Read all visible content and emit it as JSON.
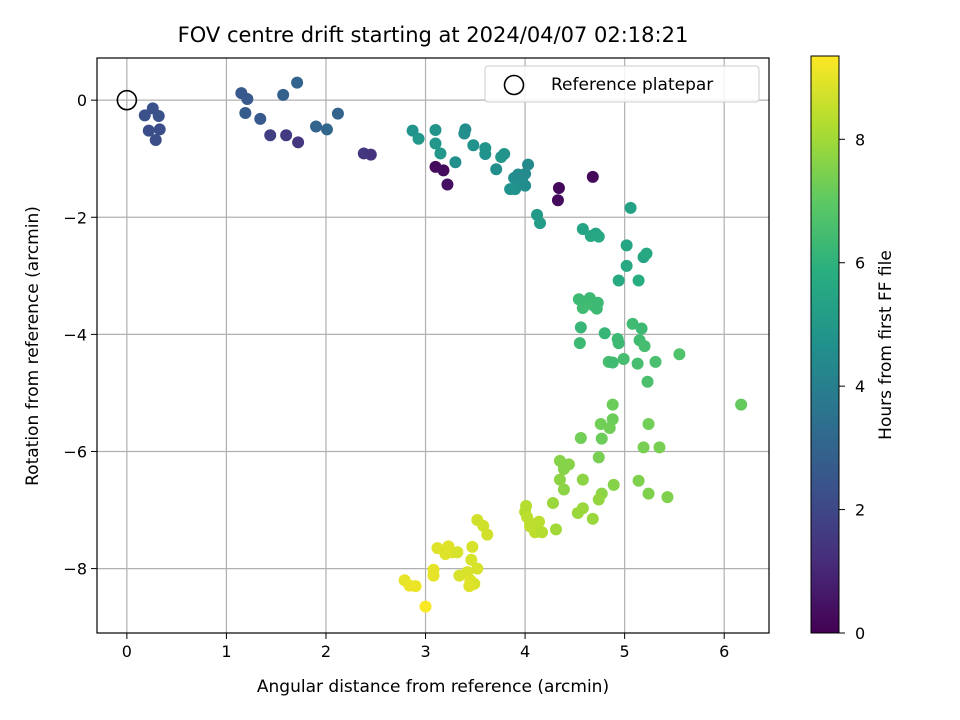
{
  "chart_data": {
    "type": "scatter",
    "title": "FOV centre drift starting at 2024/04/07 02:18:21",
    "xlabel": "Angular distance from reference (arcmin)",
    "ylabel": "Rotation from reference (arcmin)",
    "colorbar_label": "Hours from first FF file",
    "colormap": "viridis",
    "xlim": [
      -0.3,
      6.45
    ],
    "ylim": [
      -9.1,
      0.72
    ],
    "clim": [
      0,
      9.35
    ],
    "x_ticks": [
      0,
      1,
      2,
      3,
      4,
      5,
      6
    ],
    "y_ticks": [
      0,
      -2,
      -4,
      -6,
      -8
    ],
    "colorbar_ticks": [
      0,
      2,
      4,
      6,
      8
    ],
    "grid": true,
    "legend": {
      "placement": "top-right",
      "entries": [
        "Reference platepar"
      ]
    },
    "reference_point": {
      "x": 0,
      "y": 0,
      "marker": "open-circle"
    },
    "points": [
      {
        "x": 0.18,
        "y": -0.26,
        "c": 2.3
      },
      {
        "x": 0.26,
        "y": -0.14,
        "c": 2.3
      },
      {
        "x": 0.32,
        "y": -0.27,
        "c": 2.3
      },
      {
        "x": 0.22,
        "y": -0.52,
        "c": 2.2
      },
      {
        "x": 0.33,
        "y": -0.5,
        "c": 2.2
      },
      {
        "x": 0.29,
        "y": -0.68,
        "c": 2.2
      },
      {
        "x": 1.15,
        "y": 0.12,
        "c": 2.6
      },
      {
        "x": 1.21,
        "y": 0.02,
        "c": 2.6
      },
      {
        "x": 1.19,
        "y": -0.22,
        "c": 2.7
      },
      {
        "x": 1.34,
        "y": -0.32,
        "c": 2.6
      },
      {
        "x": 1.44,
        "y": -0.6,
        "c": 1.7
      },
      {
        "x": 1.57,
        "y": 0.09,
        "c": 2.9
      },
      {
        "x": 1.71,
        "y": 0.3,
        "c": 3.0
      },
      {
        "x": 1.6,
        "y": -0.6,
        "c": 1.6
      },
      {
        "x": 1.72,
        "y": -0.72,
        "c": 1.5
      },
      {
        "x": 1.9,
        "y": -0.45,
        "c": 3.0
      },
      {
        "x": 2.01,
        "y": -0.5,
        "c": 3.1
      },
      {
        "x": 2.12,
        "y": -0.23,
        "c": 3.0
      },
      {
        "x": 2.38,
        "y": -0.91,
        "c": 1.5
      },
      {
        "x": 2.45,
        "y": -0.93,
        "c": 1.4
      },
      {
        "x": 2.87,
        "y": -0.52,
        "c": 4.8
      },
      {
        "x": 2.93,
        "y": -0.66,
        "c": 4.9
      },
      {
        "x": 3.1,
        "y": -0.51,
        "c": 4.8
      },
      {
        "x": 3.1,
        "y": -0.74,
        "c": 4.9
      },
      {
        "x": 3.15,
        "y": -0.91,
        "c": 4.9
      },
      {
        "x": 3.1,
        "y": -1.14,
        "c": 0.3
      },
      {
        "x": 3.18,
        "y": -1.2,
        "c": 0.3
      },
      {
        "x": 3.22,
        "y": -1.44,
        "c": 0.4
      },
      {
        "x": 3.3,
        "y": -1.06,
        "c": 4.6
      },
      {
        "x": 3.4,
        "y": -0.5,
        "c": 4.5
      },
      {
        "x": 3.39,
        "y": -0.57,
        "c": 4.6
      },
      {
        "x": 3.48,
        "y": -0.77,
        "c": 4.7
      },
      {
        "x": 3.6,
        "y": -0.82,
        "c": 4.8
      },
      {
        "x": 3.6,
        "y": -0.92,
        "c": 4.7
      },
      {
        "x": 3.71,
        "y": -1.18,
        "c": 4.6
      },
      {
        "x": 3.76,
        "y": -0.97,
        "c": 4.9
      },
      {
        "x": 3.79,
        "y": -0.92,
        "c": 4.8
      },
      {
        "x": 3.85,
        "y": -1.52,
        "c": 4.7
      },
      {
        "x": 3.89,
        "y": -1.33,
        "c": 4.6
      },
      {
        "x": 3.9,
        "y": -1.52,
        "c": 4.7
      },
      {
        "x": 3.93,
        "y": -1.27,
        "c": 4.5
      },
      {
        "x": 3.97,
        "y": -1.37,
        "c": 4.6
      },
      {
        "x": 4.0,
        "y": -1.46,
        "c": 4.5
      },
      {
        "x": 4.0,
        "y": -1.26,
        "c": 4.4
      },
      {
        "x": 4.03,
        "y": -1.1,
        "c": 4.4
      },
      {
        "x": 4.12,
        "y": -1.96,
        "c": 5.0
      },
      {
        "x": 4.15,
        "y": -2.1,
        "c": 5.1
      },
      {
        "x": 4.34,
        "y": -1.5,
        "c": 0.2
      },
      {
        "x": 4.33,
        "y": -1.71,
        "c": 0.3
      },
      {
        "x": 4.68,
        "y": -1.31,
        "c": 0.2
      },
      {
        "x": 4.58,
        "y": -2.2,
        "c": 5.4
      },
      {
        "x": 4.66,
        "y": -2.32,
        "c": 5.6
      },
      {
        "x": 4.71,
        "y": -2.28,
        "c": 5.5
      },
      {
        "x": 4.74,
        "y": -2.33,
        "c": 5.6
      },
      {
        "x": 5.06,
        "y": -1.84,
        "c": 5.3
      },
      {
        "x": 5.02,
        "y": -2.48,
        "c": 5.5
      },
      {
        "x": 5.02,
        "y": -2.83,
        "c": 5.6
      },
      {
        "x": 4.94,
        "y": -3.08,
        "c": 5.7
      },
      {
        "x": 5.14,
        "y": -3.08,
        "c": 5.8
      },
      {
        "x": 5.19,
        "y": -2.68,
        "c": 5.5
      },
      {
        "x": 5.22,
        "y": -2.62,
        "c": 5.6
      },
      {
        "x": 4.54,
        "y": -3.4,
        "c": 6.3
      },
      {
        "x": 4.59,
        "y": -3.46,
        "c": 6.3
      },
      {
        "x": 4.65,
        "y": -3.38,
        "c": 6.3
      },
      {
        "x": 4.58,
        "y": -3.55,
        "c": 6.4
      },
      {
        "x": 4.68,
        "y": -3.5,
        "c": 6.4
      },
      {
        "x": 4.73,
        "y": -3.46,
        "c": 6.3
      },
      {
        "x": 4.72,
        "y": -3.56,
        "c": 6.3
      },
      {
        "x": 4.56,
        "y": -3.88,
        "c": 6.2
      },
      {
        "x": 4.55,
        "y": -4.15,
        "c": 6.3
      },
      {
        "x": 4.8,
        "y": -3.98,
        "c": 6.2
      },
      {
        "x": 4.93,
        "y": -4.08,
        "c": 6.3
      },
      {
        "x": 4.94,
        "y": -4.15,
        "c": 6.3
      },
      {
        "x": 5.08,
        "y": -3.82,
        "c": 6.4
      },
      {
        "x": 5.17,
        "y": -3.9,
        "c": 6.3
      },
      {
        "x": 5.15,
        "y": -4.1,
        "c": 6.4
      },
      {
        "x": 5.2,
        "y": -4.2,
        "c": 6.5
      },
      {
        "x": 4.84,
        "y": -4.47,
        "c": 6.5
      },
      {
        "x": 4.88,
        "y": -4.48,
        "c": 6.4
      },
      {
        "x": 4.99,
        "y": -4.42,
        "c": 6.5
      },
      {
        "x": 5.13,
        "y": -4.5,
        "c": 6.5
      },
      {
        "x": 5.31,
        "y": -4.47,
        "c": 6.6
      },
      {
        "x": 5.23,
        "y": -4.81,
        "c": 6.6
      },
      {
        "x": 5.55,
        "y": -4.34,
        "c": 6.7
      },
      {
        "x": 6.17,
        "y": -5.2,
        "c": 7.1
      },
      {
        "x": 4.88,
        "y": -5.2,
        "c": 7.2
      },
      {
        "x": 4.88,
        "y": -5.45,
        "c": 7.2
      },
      {
        "x": 4.76,
        "y": -5.53,
        "c": 7.3
      },
      {
        "x": 4.85,
        "y": -5.6,
        "c": 7.3
      },
      {
        "x": 4.77,
        "y": -5.78,
        "c": 7.2
      },
      {
        "x": 4.56,
        "y": -5.77,
        "c": 7.3
      },
      {
        "x": 5.24,
        "y": -5.53,
        "c": 7.3
      },
      {
        "x": 5.19,
        "y": -5.93,
        "c": 7.4
      },
      {
        "x": 5.35,
        "y": -5.93,
        "c": 7.4
      },
      {
        "x": 4.74,
        "y": -6.1,
        "c": 7.4
      },
      {
        "x": 4.35,
        "y": -6.16,
        "c": 7.6
      },
      {
        "x": 4.44,
        "y": -6.22,
        "c": 7.6
      },
      {
        "x": 4.39,
        "y": -6.3,
        "c": 7.6
      },
      {
        "x": 4.35,
        "y": -6.48,
        "c": 7.7
      },
      {
        "x": 4.58,
        "y": -6.48,
        "c": 7.7
      },
      {
        "x": 4.39,
        "y": -6.65,
        "c": 7.7
      },
      {
        "x": 4.89,
        "y": -6.57,
        "c": 7.6
      },
      {
        "x": 5.14,
        "y": -6.5,
        "c": 7.5
      },
      {
        "x": 5.24,
        "y": -6.72,
        "c": 7.5
      },
      {
        "x": 5.43,
        "y": -6.78,
        "c": 7.5
      },
      {
        "x": 4.77,
        "y": -6.72,
        "c": 7.7
      },
      {
        "x": 4.74,
        "y": -6.82,
        "c": 7.8
      },
      {
        "x": 4.28,
        "y": -6.88,
        "c": 7.9
      },
      {
        "x": 4.58,
        "y": -6.97,
        "c": 7.9
      },
      {
        "x": 4.53,
        "y": -7.05,
        "c": 7.9
      },
      {
        "x": 4.68,
        "y": -7.15,
        "c": 7.9
      },
      {
        "x": 4.31,
        "y": -7.33,
        "c": 8.0
      },
      {
        "x": 4.01,
        "y": -6.93,
        "c": 8.3
      },
      {
        "x": 4.0,
        "y": -7.03,
        "c": 8.3
      },
      {
        "x": 4.02,
        "y": -7.12,
        "c": 8.4
      },
      {
        "x": 4.05,
        "y": -7.28,
        "c": 8.4
      },
      {
        "x": 4.1,
        "y": -7.38,
        "c": 8.4
      },
      {
        "x": 4.14,
        "y": -7.2,
        "c": 8.4
      },
      {
        "x": 4.17,
        "y": -7.38,
        "c": 8.3
      },
      {
        "x": 4.05,
        "y": -7.22,
        "c": 8.4
      },
      {
        "x": 3.52,
        "y": -7.17,
        "c": 8.7
      },
      {
        "x": 3.58,
        "y": -7.27,
        "c": 8.7
      },
      {
        "x": 3.62,
        "y": -7.42,
        "c": 8.7
      },
      {
        "x": 3.47,
        "y": -7.63,
        "c": 8.8
      },
      {
        "x": 3.46,
        "y": -7.85,
        "c": 8.8
      },
      {
        "x": 3.52,
        "y": -8.0,
        "c": 8.8
      },
      {
        "x": 3.42,
        "y": -8.06,
        "c": 8.8
      },
      {
        "x": 3.34,
        "y": -8.12,
        "c": 8.8
      },
      {
        "x": 3.45,
        "y": -8.2,
        "c": 8.9
      },
      {
        "x": 3.49,
        "y": -8.26,
        "c": 8.8
      },
      {
        "x": 3.44,
        "y": -8.3,
        "c": 8.9
      },
      {
        "x": 3.12,
        "y": -7.65,
        "c": 8.9
      },
      {
        "x": 3.23,
        "y": -7.62,
        "c": 8.9
      },
      {
        "x": 3.27,
        "y": -7.72,
        "c": 8.9
      },
      {
        "x": 3.32,
        "y": -7.72,
        "c": 8.8
      },
      {
        "x": 3.2,
        "y": -7.75,
        "c": 8.9
      },
      {
        "x": 3.08,
        "y": -8.02,
        "c": 9.0
      },
      {
        "x": 3.08,
        "y": -8.12,
        "c": 9.0
      },
      {
        "x": 2.79,
        "y": -8.2,
        "c": 9.0
      },
      {
        "x": 2.84,
        "y": -8.29,
        "c": 9.1
      },
      {
        "x": 2.9,
        "y": -8.3,
        "c": 9.1
      },
      {
        "x": 3.0,
        "y": -8.65,
        "c": 9.3
      }
    ]
  }
}
